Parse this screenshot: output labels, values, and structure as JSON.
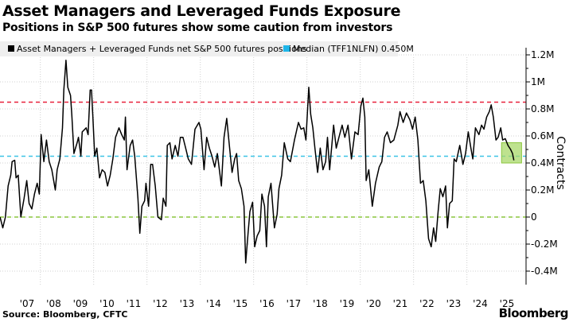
{
  "header": {
    "title": "Asset Managers and Leveraged Funds Exposure",
    "subtitle": "Positions in S&P 500 futures show some caution from investors"
  },
  "footer": {
    "source": "Source: Bloomberg, CFTC",
    "logo": "Bloomberg"
  },
  "chart_data": {
    "type": "line",
    "title": "Asset Managers and Leveraged Funds Exposure",
    "subtitle": "Positions in S&P 500 futures show some caution from investors",
    "ylabel": "Contracts",
    "ylim": [
      -0.45,
      1.3
    ],
    "xlim": [
      2006.49,
      2026.2
    ],
    "yticks": [
      1.2,
      1.0,
      0.8,
      0.6,
      0.4,
      0.2,
      0,
      -0.2,
      -0.4
    ],
    "ytick_labels": [
      "1.2M",
      "1M",
      "0.8M",
      "0.6M",
      "0.4M",
      "0.2M",
      "0",
      "-0.2M",
      "-0.4M"
    ],
    "xtick_labels": [
      "'07",
      "'08",
      "'09",
      "'10",
      "'11",
      "'12",
      "'13",
      "'14",
      "'15",
      "'16",
      "'17",
      "'18",
      "'19",
      "'20",
      "'21",
      "'22",
      "'23",
      "'24",
      "'25"
    ],
    "grid": true,
    "legend_placement": "top-left",
    "legend": [
      {
        "label": "Asset Managers + Leveraged Funds net S&P 500 futures positions",
        "color": "#000000"
      },
      {
        "label": "Median (TFF1NLFN) 0.450M",
        "color": "#1fb5e8"
      }
    ],
    "reference_lines": [
      {
        "value": 0.85,
        "color": "#e8203a",
        "style": "dashed"
      },
      {
        "value": 0.45,
        "color": "#3cc3e6",
        "style": "dashed"
      },
      {
        "value": 0,
        "color": "#8cc63f",
        "style": "dashed"
      }
    ],
    "highlight": {
      "x": [
        2025.3,
        2026.05
      ],
      "y": [
        0.4,
        0.55
      ],
      "color": "#a8d86a"
    },
    "series": [
      {
        "name": "Asset Managers + Leveraged Funds net S&P 500 futures positions",
        "color": "#000000",
        "points": [
          [
            2006.49,
            0.0
          ],
          [
            2006.59,
            -0.08
          ],
          [
            2006.69,
            0.0
          ],
          [
            2006.79,
            0.23
          ],
          [
            2006.89,
            0.31
          ],
          [
            2006.94,
            0.41
          ],
          [
            2007.04,
            0.42
          ],
          [
            2007.09,
            0.29
          ],
          [
            2007.17,
            0.31
          ],
          [
            2007.27,
            0.0
          ],
          [
            2007.39,
            0.14
          ],
          [
            2007.49,
            0.27
          ],
          [
            2007.58,
            0.1
          ],
          [
            2007.68,
            0.06
          ],
          [
            2007.78,
            0.17
          ],
          [
            2007.88,
            0.25
          ],
          [
            2007.96,
            0.17
          ],
          [
            2008.03,
            0.61
          ],
          [
            2008.13,
            0.41
          ],
          [
            2008.23,
            0.57
          ],
          [
            2008.33,
            0.41
          ],
          [
            2008.43,
            0.35
          ],
          [
            2008.56,
            0.2
          ],
          [
            2008.63,
            0.35
          ],
          [
            2008.73,
            0.43
          ],
          [
            2008.83,
            0.66
          ],
          [
            2008.88,
            0.94
          ],
          [
            2008.96,
            1.16
          ],
          [
            2009.03,
            0.96
          ],
          [
            2009.13,
            0.9
          ],
          [
            2009.18,
            0.76
          ],
          [
            2009.26,
            0.47
          ],
          [
            2009.38,
            0.55
          ],
          [
            2009.43,
            0.59
          ],
          [
            2009.52,
            0.45
          ],
          [
            2009.57,
            0.63
          ],
          [
            2009.72,
            0.66
          ],
          [
            2009.79,
            0.61
          ],
          [
            2009.87,
            0.94
          ],
          [
            2009.92,
            0.94
          ],
          [
            2009.97,
            0.74
          ],
          [
            2010.04,
            0.45
          ],
          [
            2010.12,
            0.51
          ],
          [
            2010.22,
            0.29
          ],
          [
            2010.32,
            0.35
          ],
          [
            2010.42,
            0.33
          ],
          [
            2010.52,
            0.23
          ],
          [
            2010.62,
            0.31
          ],
          [
            2010.72,
            0.43
          ],
          [
            2010.82,
            0.59
          ],
          [
            2010.95,
            0.66
          ],
          [
            2011.05,
            0.61
          ],
          [
            2011.15,
            0.57
          ],
          [
            2011.19,
            0.74
          ],
          [
            2011.25,
            0.35
          ],
          [
            2011.37,
            0.53
          ],
          [
            2011.46,
            0.57
          ],
          [
            2011.54,
            0.45
          ],
          [
            2011.66,
            0.14
          ],
          [
            2011.73,
            -0.12
          ],
          [
            2011.81,
            0.08
          ],
          [
            2011.91,
            0.12
          ],
          [
            2011.96,
            0.25
          ],
          [
            2012.06,
            0.08
          ],
          [
            2012.14,
            0.39
          ],
          [
            2012.21,
            0.39
          ],
          [
            2012.31,
            0.23
          ],
          [
            2012.41,
            0.0
          ],
          [
            2012.54,
            -0.02
          ],
          [
            2012.61,
            0.14
          ],
          [
            2012.71,
            0.08
          ],
          [
            2012.76,
            0.53
          ],
          [
            2012.86,
            0.55
          ],
          [
            2012.94,
            0.43
          ],
          [
            2013.06,
            0.53
          ],
          [
            2013.16,
            0.45
          ],
          [
            2013.25,
            0.59
          ],
          [
            2013.35,
            0.59
          ],
          [
            2013.45,
            0.51
          ],
          [
            2013.55,
            0.43
          ],
          [
            2013.67,
            0.39
          ],
          [
            2013.8,
            0.65
          ],
          [
            2013.95,
            0.7
          ],
          [
            2014.02,
            0.65
          ],
          [
            2014.14,
            0.35
          ],
          [
            2014.24,
            0.59
          ],
          [
            2014.34,
            0.51
          ],
          [
            2014.44,
            0.45
          ],
          [
            2014.54,
            0.37
          ],
          [
            2014.64,
            0.47
          ],
          [
            2014.79,
            0.23
          ],
          [
            2014.89,
            0.59
          ],
          [
            2014.99,
            0.73
          ],
          [
            2015.09,
            0.53
          ],
          [
            2015.19,
            0.33
          ],
          [
            2015.29,
            0.43
          ],
          [
            2015.36,
            0.47
          ],
          [
            2015.44,
            0.27
          ],
          [
            2015.54,
            0.21
          ],
          [
            2015.64,
            0.08
          ],
          [
            2015.7,
            -0.34
          ],
          [
            2015.79,
            -0.12
          ],
          [
            2015.86,
            0.04
          ],
          [
            2015.96,
            0.11
          ],
          [
            2016.04,
            -0.22
          ],
          [
            2016.13,
            -0.14
          ],
          [
            2016.23,
            -0.1
          ],
          [
            2016.31,
            0.17
          ],
          [
            2016.41,
            0.08
          ],
          [
            2016.48,
            -0.22
          ],
          [
            2016.55,
            0.15
          ],
          [
            2016.65,
            0.25
          ],
          [
            2016.78,
            -0.08
          ],
          [
            2016.88,
            0.02
          ],
          [
            2016.95,
            0.21
          ],
          [
            2017.05,
            0.31
          ],
          [
            2017.15,
            0.55
          ],
          [
            2017.28,
            0.43
          ],
          [
            2017.38,
            0.41
          ],
          [
            2017.53,
            0.57
          ],
          [
            2017.68,
            0.7
          ],
          [
            2017.78,
            0.65
          ],
          [
            2017.88,
            0.66
          ],
          [
            2017.96,
            0.57
          ],
          [
            2018.07,
            0.96
          ],
          [
            2018.14,
            0.76
          ],
          [
            2018.22,
            0.66
          ],
          [
            2018.3,
            0.51
          ],
          [
            2018.4,
            0.33
          ],
          [
            2018.5,
            0.51
          ],
          [
            2018.6,
            0.35
          ],
          [
            2018.7,
            0.41
          ],
          [
            2018.77,
            0.59
          ],
          [
            2018.85,
            0.35
          ],
          [
            2019.0,
            0.68
          ],
          [
            2019.1,
            0.51
          ],
          [
            2019.2,
            0.59
          ],
          [
            2019.32,
            0.68
          ],
          [
            2019.42,
            0.59
          ],
          [
            2019.54,
            0.68
          ],
          [
            2019.67,
            0.43
          ],
          [
            2019.8,
            0.63
          ],
          [
            2019.92,
            0.61
          ],
          [
            2020.02,
            0.82
          ],
          [
            2020.1,
            0.88
          ],
          [
            2020.17,
            0.74
          ],
          [
            2020.22,
            0.27
          ],
          [
            2020.32,
            0.35
          ],
          [
            2020.45,
            0.08
          ],
          [
            2020.57,
            0.25
          ],
          [
            2020.71,
            0.37
          ],
          [
            2020.81,
            0.41
          ],
          [
            2020.91,
            0.59
          ],
          [
            2021.01,
            0.63
          ],
          [
            2021.13,
            0.55
          ],
          [
            2021.26,
            0.57
          ],
          [
            2021.41,
            0.68
          ],
          [
            2021.49,
            0.78
          ],
          [
            2021.61,
            0.7
          ],
          [
            2021.73,
            0.77
          ],
          [
            2021.86,
            0.72
          ],
          [
            2021.96,
            0.65
          ],
          [
            2022.06,
            0.74
          ],
          [
            2022.16,
            0.57
          ],
          [
            2022.26,
            0.25
          ],
          [
            2022.36,
            0.27
          ],
          [
            2022.46,
            0.12
          ],
          [
            2022.56,
            -0.16
          ],
          [
            2022.66,
            -0.22
          ],
          [
            2022.75,
            -0.08
          ],
          [
            2022.83,
            -0.18
          ],
          [
            2022.92,
            0.04
          ],
          [
            2023.0,
            0.21
          ],
          [
            2023.1,
            0.15
          ],
          [
            2023.2,
            0.23
          ],
          [
            2023.27,
            -0.08
          ],
          [
            2023.35,
            0.1
          ],
          [
            2023.45,
            0.12
          ],
          [
            2023.52,
            0.43
          ],
          [
            2023.6,
            0.41
          ],
          [
            2023.73,
            0.53
          ],
          [
            2023.85,
            0.39
          ],
          [
            2023.95,
            0.47
          ],
          [
            2024.05,
            0.63
          ],
          [
            2024.15,
            0.51
          ],
          [
            2024.22,
            0.43
          ],
          [
            2024.32,
            0.66
          ],
          [
            2024.45,
            0.61
          ],
          [
            2024.55,
            0.68
          ],
          [
            2024.64,
            0.65
          ],
          [
            2024.74,
            0.74
          ],
          [
            2024.84,
            0.78
          ],
          [
            2024.91,
            0.83
          ],
          [
            2024.99,
            0.74
          ],
          [
            2025.09,
            0.57
          ],
          [
            2025.17,
            0.59
          ],
          [
            2025.27,
            0.66
          ],
          [
            2025.34,
            0.57
          ],
          [
            2025.44,
            0.58
          ],
          [
            2025.54,
            0.53
          ],
          [
            2025.64,
            0.5
          ],
          [
            2025.71,
            0.47
          ],
          [
            2025.76,
            0.42
          ]
        ]
      }
    ]
  }
}
